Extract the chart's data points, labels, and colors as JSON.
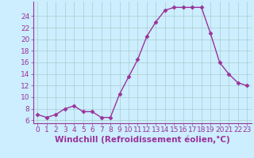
{
  "x": [
    0,
    1,
    2,
    3,
    4,
    5,
    6,
    7,
    8,
    9,
    10,
    11,
    12,
    13,
    14,
    15,
    16,
    17,
    18,
    19,
    20,
    21,
    22,
    23
  ],
  "y": [
    7,
    6.5,
    7,
    8,
    8.5,
    7.5,
    7.5,
    6.5,
    6.5,
    10.5,
    13.5,
    16.5,
    20.5,
    23,
    25,
    25.5,
    25.5,
    25.5,
    25.5,
    21,
    16,
    14,
    12.5,
    12
  ],
  "line_color": "#993399",
  "marker": "D",
  "marker_size": 2.5,
  "bg_color": "#cceeff",
  "grid_color": "#aacccc",
  "xlabel": "Windchill (Refroidissement éolien,°C)",
  "ylim": [
    5.5,
    26.5
  ],
  "xlim": [
    -0.5,
    23.5
  ],
  "yticks": [
    6,
    8,
    10,
    12,
    14,
    16,
    18,
    20,
    22,
    24
  ],
  "xticks": [
    0,
    1,
    2,
    3,
    4,
    5,
    6,
    7,
    8,
    9,
    10,
    11,
    12,
    13,
    14,
    15,
    16,
    17,
    18,
    19,
    20,
    21,
    22,
    23
  ],
  "tick_label_color": "#993399",
  "tick_label_size": 6.5,
  "xlabel_size": 7.5,
  "xlabel_color": "#993399",
  "spine_color": "#993399",
  "line_width": 1.0
}
